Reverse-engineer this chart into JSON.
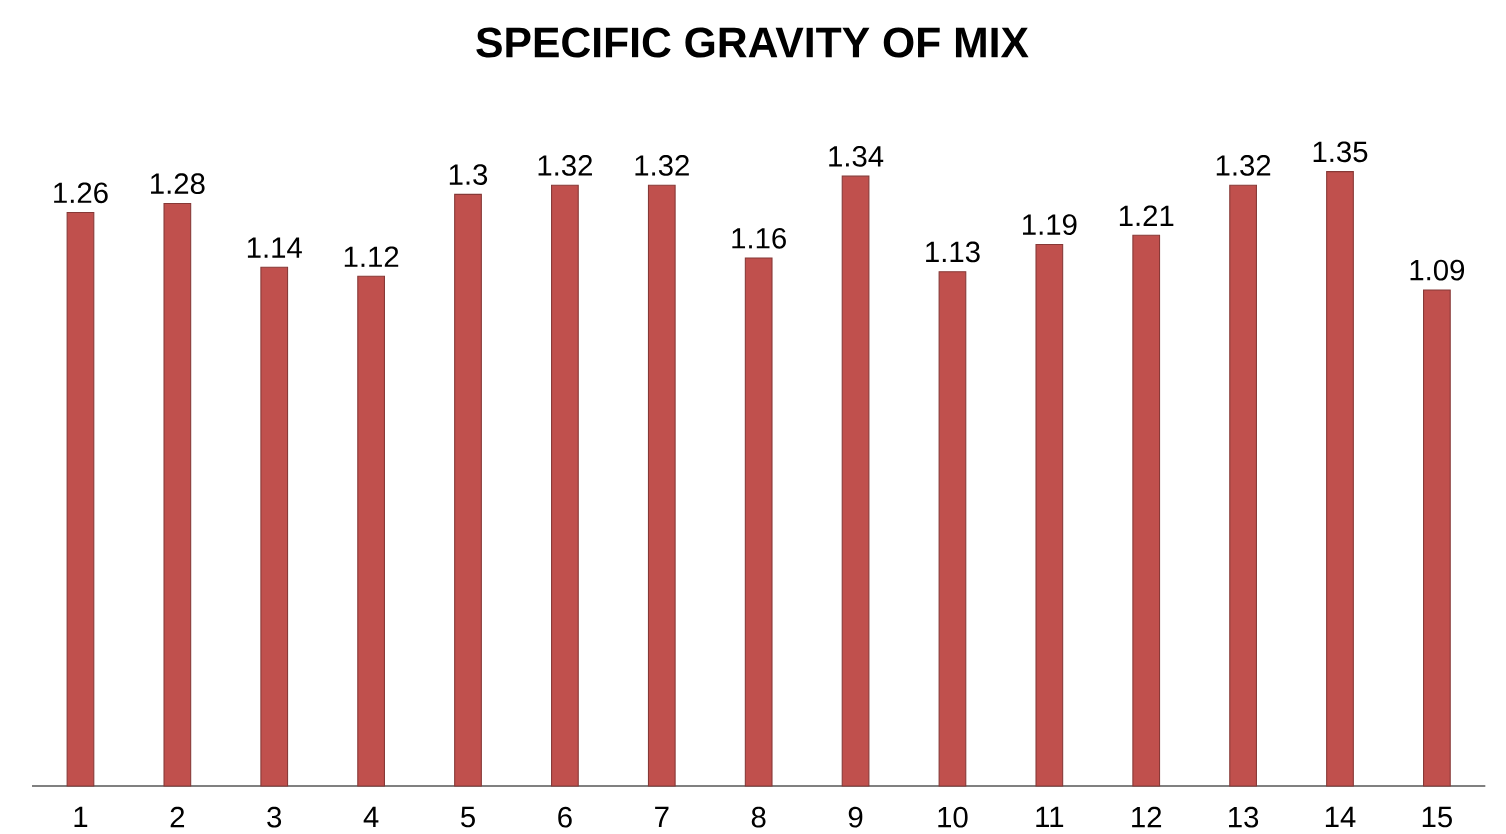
{
  "chart_data": {
    "type": "bar",
    "title": "SPECIFIC GRAVITY OF MIX",
    "categories": [
      "1",
      "2",
      "3",
      "4",
      "5",
      "6",
      "7",
      "8",
      "9",
      "10",
      "11",
      "12",
      "13",
      "14",
      "15"
    ],
    "values": [
      1.26,
      1.28,
      1.14,
      1.12,
      1.3,
      1.32,
      1.32,
      1.16,
      1.34,
      1.13,
      1.19,
      1.21,
      1.32,
      1.35,
      1.09
    ],
    "color": "#c0504d",
    "data_labels": true
  }
}
